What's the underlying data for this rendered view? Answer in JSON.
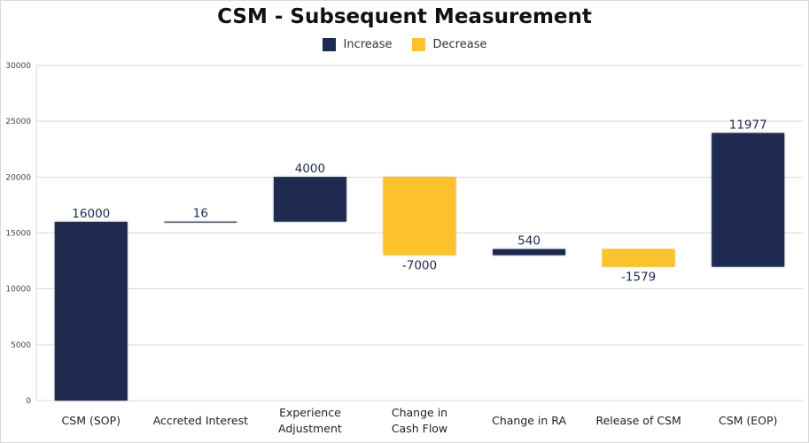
{
  "chart_data": {
    "type": "bar",
    "subtype": "waterfall",
    "title": "CSM - Subsequent Measurement",
    "legend": {
      "position": "top-center",
      "entries": [
        "Increase",
        "Decrease"
      ]
    },
    "colors": {
      "increase": "#1e2a4f",
      "decrease": "#fcc22d",
      "grid": "#d9d9d9"
    },
    "ylim": [
      0,
      30000
    ],
    "yticks": [
      0,
      5000,
      10000,
      15000,
      20000,
      25000,
      30000
    ],
    "grid": true,
    "categories": [
      [
        "CSM (SOP)"
      ],
      [
        "Accreted Interest"
      ],
      [
        "Experience",
        "Adjustment"
      ],
      [
        "Change in",
        "Cash Flow"
      ],
      [
        "Change in RA"
      ],
      [
        "Release of CSM"
      ],
      [
        "CSM (EOP)"
      ]
    ],
    "bars": [
      {
        "start": 0,
        "end": 16000,
        "label": "16000",
        "kind": "increase"
      },
      {
        "start": 16000,
        "end": 16016,
        "label": "16",
        "kind": "increase"
      },
      {
        "start": 16016,
        "end": 20016,
        "label": "4000",
        "kind": "increase"
      },
      {
        "start": 20016,
        "end": 13016,
        "label": "-7000",
        "kind": "decrease"
      },
      {
        "start": 13016,
        "end": 13556,
        "label": "540",
        "kind": "increase"
      },
      {
        "start": 13556,
        "end": 11977,
        "label": "-1579",
        "kind": "decrease"
      },
      {
        "start": 11977,
        "end": 23954,
        "label": "11977",
        "kind": "increase"
      }
    ]
  }
}
